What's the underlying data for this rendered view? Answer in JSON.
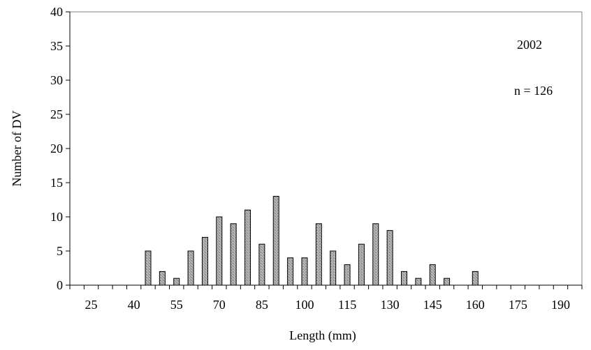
{
  "chart_data": {
    "type": "bar",
    "title": "",
    "xlabel": "Length (mm)",
    "ylabel": "Number of DV",
    "ylim": [
      0,
      40
    ],
    "y_ticks": [
      0,
      5,
      10,
      15,
      20,
      25,
      30,
      35,
      40
    ],
    "x_tick_labels": [
      "25",
      "40",
      "55",
      "70",
      "85",
      "100",
      "115",
      "130",
      "145",
      "160",
      "175",
      "190"
    ],
    "categories": [
      20,
      25,
      30,
      35,
      40,
      45,
      50,
      55,
      60,
      65,
      70,
      75,
      80,
      85,
      90,
      95,
      100,
      105,
      110,
      115,
      120,
      125,
      130,
      135,
      140,
      145,
      150,
      155,
      160,
      165,
      170,
      175,
      180,
      185,
      190,
      195
    ],
    "values": [
      0,
      0,
      0,
      0,
      0,
      5,
      2,
      1,
      5,
      7,
      10,
      9,
      11,
      6,
      13,
      4,
      4,
      9,
      5,
      3,
      6,
      9,
      8,
      2,
      1,
      3,
      1,
      0,
      2,
      0,
      0,
      0,
      0,
      0,
      0,
      0
    ],
    "annotations": [
      "2002",
      "n = 126"
    ],
    "grid": false,
    "legend": "none",
    "bar_color": "#a9a9a9"
  }
}
